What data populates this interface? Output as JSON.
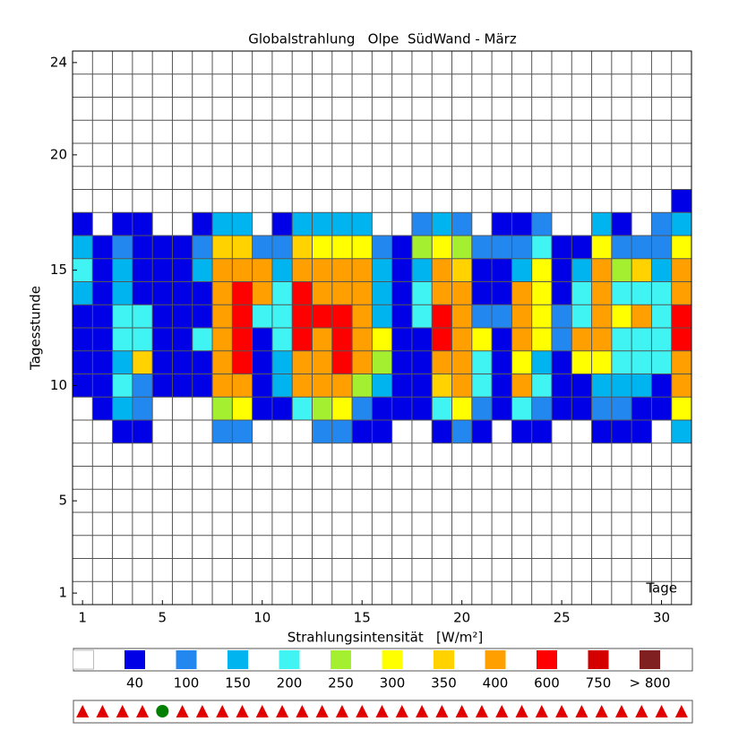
{
  "chart_data": {
    "type": "heatmap",
    "title": "Globalstrahlung   Olpe  SüdWand - März",
    "ylabel": "Tagesstunde",
    "annotation": "Tage",
    "xlim": [
      0.5,
      31.5
    ],
    "xticks": [
      1,
      5,
      10,
      15,
      20,
      25,
      30
    ],
    "ylim": [
      0.5,
      24.5
    ],
    "yticks": [
      1,
      5,
      10,
      15,
      20,
      24
    ],
    "hours": [
      18,
      17,
      16,
      15,
      14,
      13,
      12,
      11,
      10,
      9,
      8
    ],
    "z": [
      [
        0,
        0,
        0,
        0,
        0,
        0,
        0,
        0,
        0,
        0,
        0,
        0,
        0,
        0,
        0,
        0,
        0,
        0,
        0,
        0,
        0,
        0,
        0,
        0,
        0,
        0,
        0,
        0,
        0,
        0,
        40
      ],
      [
        40,
        0,
        40,
        40,
        0,
        0,
        40,
        150,
        150,
        0,
        40,
        150,
        150,
        150,
        150,
        0,
        0,
        100,
        150,
        100,
        0,
        40,
        40,
        100,
        0,
        0,
        150,
        40,
        0,
        100,
        150
      ],
      [
        150,
        40,
        100,
        40,
        40,
        40,
        100,
        350,
        350,
        100,
        100,
        350,
        300,
        300,
        300,
        100,
        40,
        250,
        300,
        250,
        100,
        100,
        100,
        200,
        40,
        40,
        300,
        100,
        100,
        100,
        300
      ],
      [
        200,
        40,
        150,
        40,
        40,
        40,
        150,
        400,
        400,
        400,
        150,
        400,
        400,
        400,
        400,
        150,
        40,
        150,
        400,
        350,
        40,
        40,
        150,
        300,
        40,
        150,
        400,
        250,
        350,
        150,
        400
      ],
      [
        150,
        40,
        150,
        40,
        40,
        40,
        40,
        400,
        600,
        400,
        200,
        600,
        400,
        400,
        400,
        150,
        40,
        200,
        400,
        400,
        40,
        40,
        400,
        300,
        40,
        200,
        400,
        200,
        200,
        200,
        400
      ],
      [
        40,
        40,
        200,
        200,
        40,
        40,
        40,
        400,
        600,
        200,
        200,
        600,
        600,
        600,
        400,
        150,
        40,
        200,
        600,
        400,
        100,
        100,
        400,
        300,
        100,
        200,
        400,
        300,
        400,
        200,
        600
      ],
      [
        40,
        40,
        200,
        200,
        40,
        40,
        200,
        400,
        600,
        40,
        200,
        600,
        400,
        600,
        400,
        300,
        40,
        40,
        600,
        400,
        300,
        40,
        400,
        300,
        100,
        400,
        400,
        200,
        200,
        200,
        600
      ],
      [
        40,
        40,
        150,
        350,
        40,
        40,
        40,
        400,
        600,
        40,
        150,
        400,
        400,
        600,
        400,
        250,
        40,
        40,
        400,
        400,
        200,
        40,
        300,
        150,
        40,
        300,
        300,
        200,
        200,
        200,
        400
      ],
      [
        40,
        40,
        200,
        100,
        40,
        40,
        40,
        400,
        400,
        40,
        150,
        400,
        400,
        400,
        250,
        150,
        40,
        40,
        350,
        400,
        200,
        40,
        400,
        200,
        40,
        40,
        150,
        150,
        150,
        40,
        400
      ],
      [
        0,
        40,
        150,
        100,
        0,
        0,
        0,
        250,
        300,
        40,
        40,
        200,
        250,
        300,
        100,
        40,
        40,
        40,
        200,
        300,
        100,
        40,
        200,
        100,
        40,
        40,
        100,
        100,
        40,
        40,
        300
      ],
      [
        0,
        0,
        40,
        40,
        0,
        0,
        0,
        100,
        100,
        0,
        0,
        0,
        100,
        100,
        40,
        40,
        0,
        0,
        40,
        100,
        40,
        0,
        40,
        40,
        0,
        0,
        40,
        40,
        40,
        0,
        150
      ]
    ],
    "empty_color": "#ffffff",
    "legend": {
      "title": "Strahlungsintensität   [W/m²]",
      "levels": [
        {
          "value": 40,
          "color": "#0000e6"
        },
        {
          "value": 100,
          "color": "#2288f0"
        },
        {
          "value": 150,
          "color": "#00b4f0"
        },
        {
          "value": 200,
          "color": "#40f4f4"
        },
        {
          "value": 250,
          "color": "#a4f030"
        },
        {
          "value": 300,
          "color": "#ffff00"
        },
        {
          "value": 350,
          "color": "#ffd200"
        },
        {
          "value": 400,
          "color": "#ffa000"
        },
        {
          "value": 600,
          "color": "#ff0000"
        },
        {
          "value": 750,
          "color": "#d40000"
        },
        {
          "value": 800,
          "label": "> 800",
          "color": "#802020"
        }
      ]
    },
    "day_markers": [
      "triangle",
      "triangle",
      "triangle",
      "triangle",
      "circle",
      "triangle",
      "triangle",
      "triangle",
      "triangle",
      "triangle",
      "triangle",
      "triangle",
      "triangle",
      "triangle",
      "triangle",
      "triangle",
      "triangle",
      "triangle",
      "triangle",
      "triangle",
      "triangle",
      "triangle",
      "triangle",
      "triangle",
      "triangle",
      "triangle",
      "triangle",
      "triangle",
      "triangle",
      "triangle",
      "triangle"
    ]
  }
}
